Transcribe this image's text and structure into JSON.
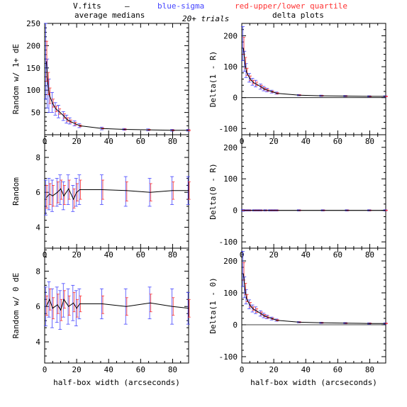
{
  "header": {
    "filename": "V.fits",
    "dash": "–",
    "blue_label": "blue-sigma",
    "red_label": "red-upper/lower quartile",
    "trials": "20+ trials",
    "left_title": "average medians",
    "right_title": "delta plots"
  },
  "colors": {
    "median": "#000000",
    "sigma": "#4444ff",
    "quartile": "#ff3333",
    "frame": "#000000"
  },
  "chart_data": [
    {
      "type": "line",
      "panel": "left-top",
      "xlabel": "",
      "ylabel": "Random w/ 1+ dE",
      "xlim": [
        0,
        90
      ],
      "ylim": [
        0,
        250
      ],
      "xticks": [
        0,
        20,
        40,
        60,
        80
      ],
      "yticks": [
        50,
        100,
        150,
        200,
        250
      ],
      "x": [
        1,
        2,
        3,
        5,
        7,
        9,
        12,
        14,
        16,
        19,
        22,
        36,
        50,
        65,
        80,
        90
      ],
      "y": [
        165,
        115,
        88,
        70,
        58,
        52,
        42,
        34,
        30,
        25,
        20,
        14,
        12,
        11,
        10,
        10
      ],
      "sigma_low": [
        80,
        60,
        50,
        50,
        44,
        38,
        32,
        26,
        24,
        20,
        16,
        11,
        10,
        9,
        8,
        8
      ],
      "sigma_high": [
        250,
        170,
        125,
        95,
        72,
        66,
        52,
        44,
        38,
        31,
        25,
        17,
        14,
        13,
        12,
        12
      ],
      "quart_low": [
        120,
        90,
        70,
        62,
        52,
        46,
        37,
        30,
        27,
        22,
        18,
        13,
        11,
        10,
        9,
        9
      ],
      "quart_high": [
        210,
        140,
        105,
        80,
        64,
        58,
        47,
        38,
        33,
        28,
        22,
        15,
        13,
        12,
        11,
        11
      ]
    },
    {
      "type": "line",
      "panel": "left-mid",
      "xlabel": "",
      "ylabel": "Random",
      "xlim": [
        0,
        90
      ],
      "ylim": [
        2.8,
        9.3
      ],
      "xticks": [
        0,
        20,
        40,
        60,
        80
      ],
      "yticks": [
        4,
        6,
        8
      ],
      "x": [
        1,
        3,
        5,
        8,
        10,
        12,
        15,
        18,
        20,
        22,
        36,
        51,
        66,
        80,
        90
      ],
      "y": [
        5.7,
        5.9,
        5.8,
        6.0,
        6.2,
        5.8,
        6.2,
        5.6,
        6.0,
        6.15,
        6.15,
        6.1,
        6.0,
        6.1,
        6.1
      ],
      "sigma_low": [
        4.7,
        5.0,
        4.9,
        5.2,
        5.3,
        5.0,
        5.3,
        4.9,
        5.2,
        5.3,
        5.3,
        5.2,
        5.2,
        5.3,
        5.3
      ],
      "sigma_high": [
        6.7,
        6.8,
        6.7,
        6.8,
        7.0,
        6.6,
        7.0,
        6.4,
        6.8,
        7.0,
        7.0,
        6.9,
        6.8,
        6.9,
        6.9
      ],
      "quart_low": [
        5.1,
        5.3,
        5.2,
        5.4,
        5.6,
        5.3,
        5.6,
        5.1,
        5.5,
        5.6,
        5.6,
        5.5,
        5.5,
        5.6,
        5.6
      ],
      "quart_high": [
        6.4,
        6.5,
        6.4,
        6.6,
        6.7,
        6.4,
        6.7,
        6.2,
        6.5,
        6.7,
        6.7,
        6.6,
        6.5,
        6.6,
        6.6
      ]
    },
    {
      "type": "line",
      "panel": "left-bot",
      "xlabel": "half-box width (arcseconds)",
      "ylabel": "Random w/ 0 dE",
      "xlim": [
        0,
        90
      ],
      "ylim": [
        2.8,
        9.3
      ],
      "xticks": [
        0,
        20,
        40,
        60,
        80
      ],
      "yticks": [
        4,
        6,
        8
      ],
      "x": [
        1,
        3,
        5,
        8,
        10,
        12,
        15,
        18,
        20,
        22,
        36,
        51,
        66,
        80,
        90
      ],
      "y": [
        6.0,
        6.4,
        5.9,
        6.1,
        5.8,
        6.4,
        6.0,
        6.2,
        5.9,
        6.15,
        6.15,
        6.0,
        6.2,
        6.0,
        5.9
      ],
      "sigma_low": [
        4.9,
        5.4,
        4.8,
        5.1,
        4.7,
        5.4,
        5.0,
        5.2,
        4.9,
        5.3,
        5.3,
        5.0,
        5.3,
        5.0,
        5.0
      ],
      "sigma_high": [
        7.1,
        7.4,
        7.0,
        7.1,
        6.9,
        7.3,
        7.0,
        7.2,
        6.9,
        7.0,
        7.0,
        7.0,
        7.1,
        7.0,
        6.8
      ],
      "quart_low": [
        5.5,
        5.8,
        5.3,
        5.6,
        5.2,
        5.9,
        5.5,
        5.7,
        5.4,
        5.7,
        5.6,
        5.5,
        5.7,
        5.5,
        5.4
      ],
      "quart_high": [
        6.6,
        7.0,
        6.5,
        6.7,
        6.4,
        6.9,
        6.6,
        6.8,
        6.4,
        6.6,
        6.6,
        6.5,
        6.7,
        6.5,
        6.4
      ]
    },
    {
      "type": "line",
      "panel": "right-top",
      "xlabel": "",
      "ylabel": "Delta(1 - R)",
      "xlim": [
        0,
        90
      ],
      "ylim": [
        -120,
        240
      ],
      "xticks": [
        0,
        20,
        40,
        60,
        80
      ],
      "yticks": [
        -100,
        0,
        100,
        200
      ],
      "x": [
        1,
        2,
        3,
        5,
        7,
        9,
        12,
        14,
        16,
        19,
        22,
        36,
        50,
        65,
        80,
        90
      ],
      "y": [
        160,
        110,
        82,
        62,
        50,
        44,
        35,
        28,
        24,
        19,
        14,
        8,
        6,
        5,
        4,
        4
      ],
      "sigma_low": [
        120,
        85,
        65,
        50,
        40,
        35,
        27,
        22,
        19,
        15,
        11,
        6,
        4,
        3,
        2,
        2
      ],
      "sigma_high": [
        230,
        150,
        110,
        78,
        62,
        56,
        44,
        36,
        30,
        24,
        18,
        10,
        8,
        7,
        6,
        6
      ],
      "quart_low": [
        140,
        95,
        72,
        55,
        45,
        39,
        31,
        25,
        21,
        17,
        12,
        7,
        5,
        4,
        3,
        3
      ],
      "quart_high": [
        195,
        130,
        95,
        70,
        56,
        50,
        40,
        32,
        27,
        21,
        16,
        9,
        7,
        6,
        5,
        5
      ]
    },
    {
      "type": "line",
      "panel": "right-mid",
      "xlabel": "",
      "ylabel": "Delta(0 - R)",
      "xlim": [
        0,
        90
      ],
      "ylim": [
        -120,
        240
      ],
      "xticks": [
        0,
        20,
        40,
        60,
        80
      ],
      "yticks": [
        -100,
        0,
        100,
        200
      ],
      "x": [
        1,
        3,
        5,
        8,
        10,
        12,
        15,
        18,
        20,
        22,
        36,
        51,
        66,
        80,
        90
      ],
      "y": [
        0,
        0,
        0,
        0,
        0,
        0,
        0,
        0,
        0,
        0,
        0,
        0,
        0,
        0,
        0
      ],
      "sigma_low": [
        -3,
        -2,
        -2,
        -2,
        -2,
        -2,
        -2,
        -2,
        -2,
        -2,
        -2,
        -2,
        -2,
        -2,
        -2
      ],
      "sigma_high": [
        3,
        2,
        2,
        2,
        2,
        2,
        2,
        2,
        2,
        2,
        2,
        2,
        2,
        2,
        2
      ],
      "quart_low": [
        -1,
        -1,
        -1,
        -1,
        -1,
        -1,
        -1,
        -1,
        -1,
        -1,
        -1,
        -1,
        -1,
        -1,
        -1
      ],
      "quart_high": [
        1,
        1,
        1,
        1,
        1,
        1,
        1,
        1,
        1,
        1,
        1,
        1,
        1,
        1,
        1
      ]
    },
    {
      "type": "line",
      "panel": "right-bot",
      "xlabel": "half-box width (arcseconds)",
      "ylabel": "Delta(1 - 0)",
      "xlim": [
        0,
        90
      ],
      "ylim": [
        -120,
        240
      ],
      "xticks": [
        0,
        20,
        40,
        60,
        80
      ],
      "yticks": [
        -100,
        0,
        100,
        200
      ],
      "x": [
        1,
        2,
        3,
        5,
        7,
        9,
        12,
        14,
        16,
        19,
        22,
        36,
        50,
        65,
        80,
        90
      ],
      "y": [
        160,
        110,
        82,
        62,
        50,
        44,
        35,
        28,
        24,
        19,
        14,
        8,
        6,
        5,
        4,
        4
      ],
      "sigma_low": [
        120,
        85,
        65,
        50,
        40,
        35,
        27,
        22,
        19,
        15,
        11,
        6,
        4,
        3,
        2,
        2
      ],
      "sigma_high": [
        230,
        150,
        110,
        78,
        62,
        56,
        44,
        36,
        30,
        24,
        18,
        10,
        8,
        7,
        6,
        6
      ],
      "quart_low": [
        140,
        95,
        72,
        55,
        45,
        39,
        31,
        25,
        21,
        17,
        12,
        7,
        5,
        4,
        3,
        3
      ],
      "quart_high": [
        195,
        130,
        95,
        70,
        56,
        50,
        40,
        32,
        27,
        21,
        16,
        9,
        7,
        6,
        5,
        5
      ]
    }
  ]
}
